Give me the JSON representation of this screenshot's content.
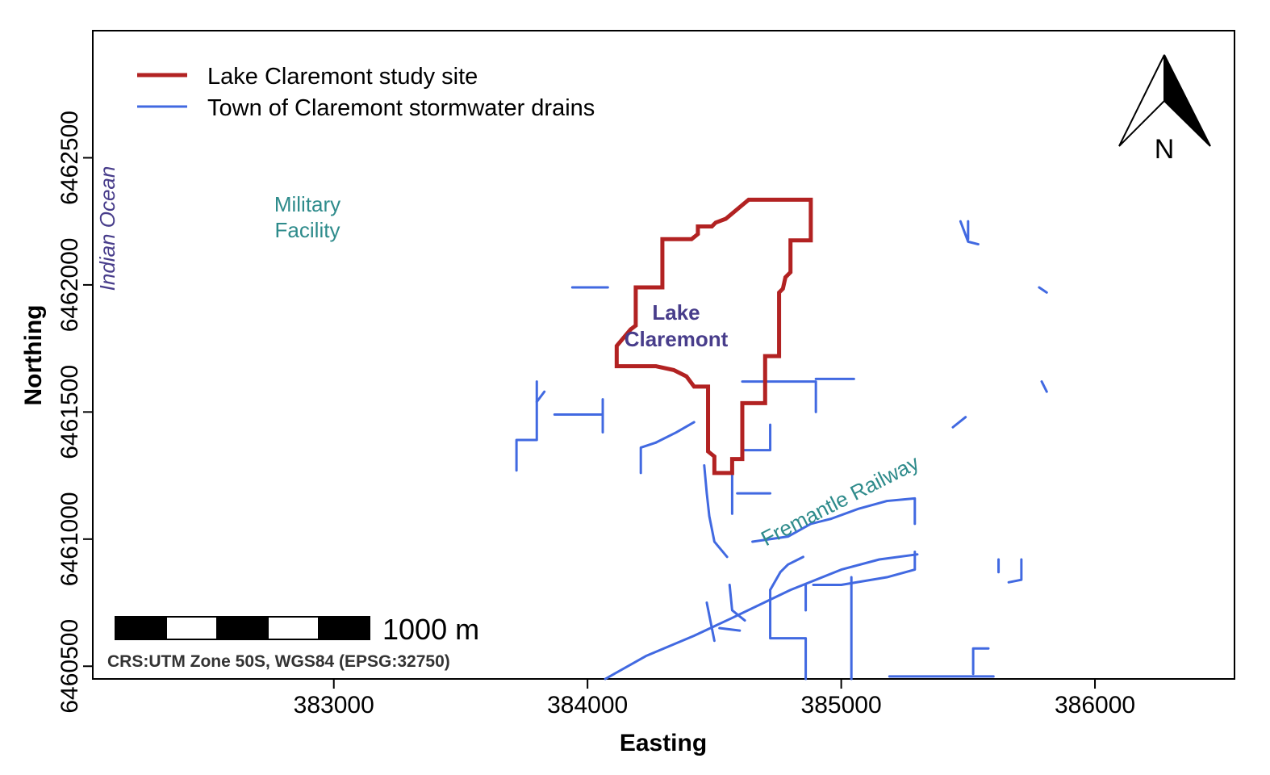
{
  "map": {
    "xlabel": "Easting",
    "ylabel": "Northing",
    "x_ticks": [
      383000,
      384000,
      385000,
      386000
    ],
    "y_ticks": [
      6460500,
      6461000,
      6461500,
      6462000,
      6462500
    ],
    "xlim": [
      382050,
      386550
    ],
    "ylim": [
      6460450,
      6463000
    ]
  },
  "legend": {
    "position": "top-left",
    "items": [
      {
        "label": "Lake Claremont study site",
        "color": "#b22222"
      },
      {
        "label": "Town of Claremont stormwater drains",
        "color": "#4169e1"
      }
    ]
  },
  "labels": {
    "ocean": "Indian Ocean",
    "military_line1": "Military",
    "military_line2": "Facility",
    "lake_line1": "Lake",
    "lake_line2": "Claremont",
    "railway": "Fremantle Railway"
  },
  "north_arrow": {
    "label": "N"
  },
  "scale_bar": {
    "label": "1000 m"
  },
  "crs": "CRS:UTM Zone 50S, WGS84 (EPSG:32750)",
  "colors": {
    "study_site": "#b22222",
    "drains": "#4169e1",
    "ocean_label": "#483d8b",
    "place_label": "#2e8b8b",
    "lake_label": "#483d8b"
  },
  "study_site_boundary": [
    [
      384635,
      6462335
    ],
    [
      384880,
      6462335
    ],
    [
      384880,
      6462175
    ],
    [
      384800,
      6462175
    ],
    [
      384800,
      6462050
    ],
    [
      384780,
      6462030
    ],
    [
      384770,
      6461985
    ],
    [
      384755,
      6461970
    ],
    [
      384755,
      6461720
    ],
    [
      384700,
      6461720
    ],
    [
      384700,
      6461535
    ],
    [
      384610,
      6461535
    ],
    [
      384610,
      6461315
    ],
    [
      384570,
      6461315
    ],
    [
      384570,
      6461260
    ],
    [
      384500,
      6461260
    ],
    [
      384500,
      6461325
    ],
    [
      384475,
      6461345
    ],
    [
      384475,
      6461600
    ],
    [
      384420,
      6461600
    ],
    [
      384390,
      6461640
    ],
    [
      384340,
      6461665
    ],
    [
      384270,
      6461680
    ],
    [
      384115,
      6461680
    ],
    [
      384115,
      6461760
    ],
    [
      384170,
      6461825
    ],
    [
      384190,
      6461840
    ],
    [
      384190,
      6461990
    ],
    [
      384295,
      6461990
    ],
    [
      384295,
      6462180
    ],
    [
      384410,
      6462180
    ],
    [
      384435,
      6462200
    ],
    [
      384435,
      6462230
    ],
    [
      384490,
      6462230
    ],
    [
      384505,
      6462245
    ],
    [
      384545,
      6462260
    ]
  ],
  "drains": [
    [
      [
        384070,
        6460450
      ],
      [
        384230,
        6460540
      ],
      [
        384420,
        6460620
      ],
      [
        384570,
        6460690
      ],
      [
        384800,
        6460800
      ],
      [
        385000,
        6460880
      ],
      [
        385150,
        6460920
      ],
      [
        385300,
        6460940
      ]
    ],
    [
      [
        384270,
        6461380
      ],
      [
        384350,
        6461420
      ],
      [
        384420,
        6461460
      ]
    ],
    [
      [
        384210,
        6461260
      ],
      [
        384210,
        6461360
      ],
      [
        384270,
        6461380
      ]
    ],
    [
      [
        384460,
        6461290
      ],
      [
        384470,
        6461180
      ],
      [
        384480,
        6461090
      ],
      [
        384500,
        6460990
      ],
      [
        384550,
        6460930
      ]
    ],
    [
      [
        384560,
        6460820
      ],
      [
        384570,
        6460720
      ],
      [
        384620,
        6460680
      ]
    ],
    [
      [
        384570,
        6461300
      ],
      [
        384570,
        6461100
      ]
    ],
    [
      [
        384720,
        6461450
      ],
      [
        384720,
        6461350
      ],
      [
        384610,
        6461350
      ]
    ],
    [
      [
        384590,
        6461180
      ],
      [
        384720,
        6461180
      ]
    ],
    [
      [
        384610,
        6461620
      ],
      [
        384900,
        6461620
      ],
      [
        384900,
        6461500
      ]
    ],
    [
      [
        384900,
        6461630
      ],
      [
        385050,
        6461630
      ]
    ],
    [
      [
        384650,
        6460990
      ],
      [
        384790,
        6461010
      ],
      [
        384880,
        6461060
      ],
      [
        384960,
        6461080
      ],
      [
        385070,
        6461120
      ],
      [
        385180,
        6461150
      ],
      [
        385290,
        6461160
      ],
      [
        385290,
        6461060
      ]
    ],
    [
      [
        384720,
        6460800
      ],
      [
        384760,
        6460870
      ],
      [
        384790,
        6460900
      ],
      [
        384850,
        6460930
      ]
    ],
    [
      [
        384720,
        6460800
      ],
      [
        384720,
        6460610
      ],
      [
        384860,
        6460610
      ],
      [
        384860,
        6460550
      ],
      [
        384860,
        6460450
      ]
    ],
    [
      [
        384890,
        6460820
      ],
      [
        385000,
        6460820
      ],
      [
        385180,
        6460850
      ],
      [
        385290,
        6460880
      ],
      [
        385290,
        6460950
      ]
    ],
    [
      [
        385040,
        6460850
      ],
      [
        385040,
        6460450
      ]
    ],
    [
      [
        384860,
        6460820
      ],
      [
        384860,
        6460720
      ]
    ],
    [
      [
        385520,
        6460470
      ],
      [
        385520,
        6460570
      ],
      [
        385580,
        6460570
      ]
    ],
    [
      [
        385190,
        6460460
      ],
      [
        385600,
        6460460
      ]
    ],
    [
      [
        383720,
        6461270
      ],
      [
        383720,
        6461390
      ],
      [
        383800,
        6461390
      ],
      [
        383800,
        6461620
      ]
    ],
    [
      [
        383800,
        6461540
      ],
      [
        383830,
        6461580
      ]
    ],
    [
      [
        383870,
        6461490
      ],
      [
        384060,
        6461490
      ]
    ],
    [
      [
        384060,
        6461550
      ],
      [
        384060,
        6461420
      ]
    ],
    [
      [
        383940,
        6461990
      ],
      [
        384080,
        6461990
      ]
    ],
    [
      [
        384470,
        6460750
      ],
      [
        384500,
        6460600
      ]
    ],
    [
      [
        384520,
        6460650
      ],
      [
        384600,
        6460640
      ]
    ],
    [
      [
        385440,
        6461440
      ],
      [
        385490,
        6461480
      ]
    ],
    [
      [
        385470,
        6462250
      ],
      [
        385500,
        6462170
      ],
      [
        385540,
        6462160
      ]
    ],
    [
      [
        385500,
        6462180
      ],
      [
        385500,
        6462250
      ]
    ],
    [
      [
        385710,
        6460920
      ],
      [
        385710,
        6460840
      ],
      [
        385660,
        6460830
      ]
    ],
    [
      [
        385790,
        6461620
      ],
      [
        385810,
        6461580
      ]
    ],
    [
      [
        385780,
        6461990
      ],
      [
        385810,
        6461970
      ]
    ],
    [
      [
        385620,
        6460920
      ],
      [
        385620,
        6460870
      ]
    ]
  ]
}
